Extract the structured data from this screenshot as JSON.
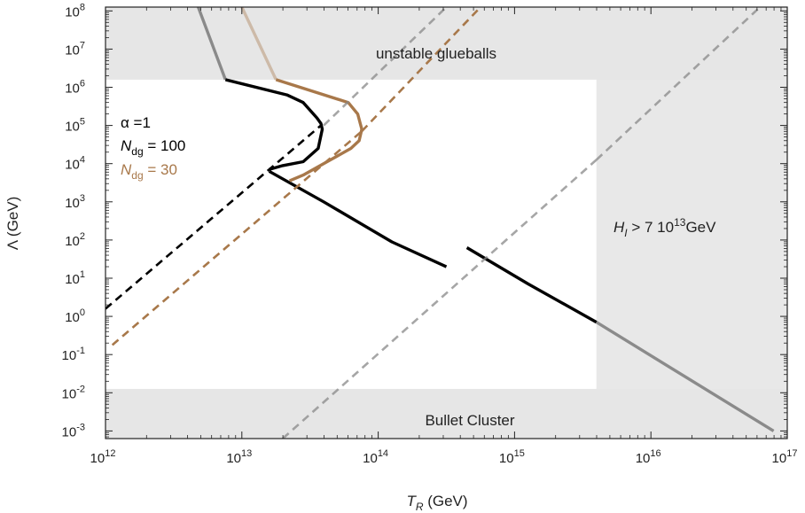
{
  "chart_data": {
    "type": "line",
    "xlabel": "T_R (GeV)",
    "xlabel_main": "T",
    "xlabel_sub": "R",
    "xlabel_unit": " (GeV)",
    "ylabel": "Λ (GeV)",
    "xscale": "log",
    "yscale": "log",
    "xlim_log10": [
      12,
      17
    ],
    "ylim_log10": [
      -3.2,
      8.1
    ],
    "x_tick_exponents": [
      12,
      13,
      14,
      15,
      16,
      17
    ],
    "y_tick_exponents": [
      -3,
      -2,
      -1,
      0,
      1,
      2,
      3,
      4,
      5,
      6,
      7,
      8
    ],
    "tick_base": "10",
    "regions": [
      {
        "name": "unstable glueballs",
        "label": "unstable glueballs",
        "log10_y_min": 6.2,
        "log10_y_max": 8.1
      },
      {
        "name": "Bullet Cluster",
        "label": "Bullet Cluster",
        "log10_y_min": -3.2,
        "log10_y_max": -1.9
      },
      {
        "name": "inflation bound",
        "label_main": "H",
        "label_sub": "I",
        "label_rest": " > 7 10",
        "label_sup": "13",
        "label_unit": "GeV",
        "log10_x_min": 15.6,
        "log10_x_max": 17
      }
    ],
    "annotations": {
      "alpha_label": "α =1",
      "n1_main": "N",
      "n1_sub": "dg",
      "n1_rest": " = 100",
      "n2_main": "N",
      "n2_sub": "dg",
      "n2_rest": " = 30"
    },
    "colors": {
      "black": "#000000",
      "brown": "#a8784a",
      "gray": "#888888",
      "shade": "#e6e6e6"
    },
    "series": [
      {
        "style": "solid",
        "color": "black",
        "log10_x": [
          12.88,
          13.33,
          13.45,
          13.5,
          13.55,
          13.58,
          13.59,
          13.56,
          13.45,
          13.3,
          13.2
        ],
        "log10_y": [
          6.2,
          5.8,
          5.6,
          5.4,
          5.2,
          5.05,
          4.9,
          4.4,
          4.05,
          3.95,
          3.85
        ]
      },
      {
        "style": "solid",
        "color": "black",
        "log10_x": [
          13.2,
          13.6,
          14.1,
          14.5
        ],
        "log10_y": [
          3.8,
          3.0,
          1.95,
          1.3
        ]
      },
      {
        "style": "solid",
        "color": "black",
        "log10_x": [
          14.65,
          15.1,
          15.6
        ],
        "log10_y": [
          1.8,
          0.85,
          -0.15
        ]
      },
      {
        "style": "fade",
        "color": "black",
        "log10_x": [
          15.6,
          16.9
        ],
        "log10_y": [
          -0.15,
          -3.0
        ]
      },
      {
        "style": "fade",
        "color": "black",
        "log10_x": [
          12.68,
          12.88
        ],
        "log10_y": [
          8.1,
          6.2
        ]
      },
      {
        "style": "solid",
        "color": "brown",
        "log10_x": [
          13.25,
          13.78,
          13.85,
          13.88,
          13.86,
          13.8,
          13.65,
          13.45,
          13.35
        ],
        "log10_y": [
          6.2,
          5.6,
          5.3,
          4.9,
          4.6,
          4.4,
          4.1,
          3.7,
          3.55
        ]
      },
      {
        "style": "fade",
        "color": "brown",
        "log10_x": [
          13.0,
          13.25
        ],
        "log10_y": [
          8.1,
          6.2
        ]
      },
      {
        "style": "dashed",
        "color": "black",
        "log10_x": [
          12.0,
          13.58
        ],
        "log10_y": [
          0.2,
          5.0
        ]
      },
      {
        "style": "dashed",
        "color": "brown",
        "log10_x": [
          12.05,
          13.88
        ],
        "log10_y": [
          -0.75,
          4.85
        ]
      },
      {
        "style": "dashed",
        "color": "brown",
        "log10_x": [
          13.88,
          14.75
        ],
        "log10_y": [
          4.85,
          8.1
        ]
      },
      {
        "style": "dashed",
        "color": "gray",
        "log10_x": [
          13.6,
          14.5
        ],
        "log10_y": [
          5.0,
          8.1
        ]
      },
      {
        "style": "dashed",
        "color": "gray",
        "log10_x": [
          13.3,
          15.6
        ],
        "log10_y": [
          -3.2,
          4.1
        ]
      },
      {
        "style": "dashed",
        "color": "gray",
        "log10_x": [
          15.6,
          16.8
        ],
        "log10_y": [
          4.1,
          8.1
        ]
      }
    ]
  }
}
